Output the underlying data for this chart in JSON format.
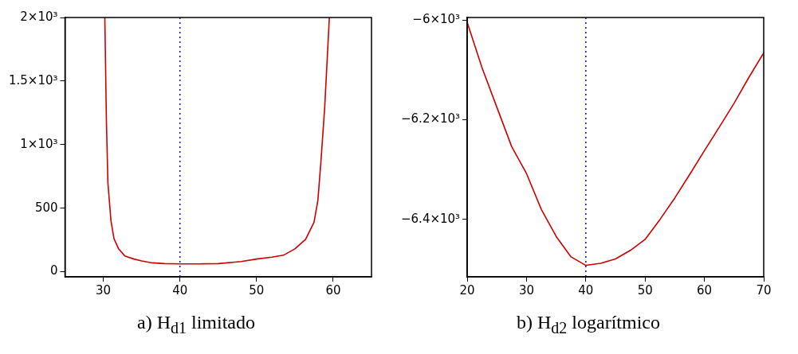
{
  "chart_data": [
    {
      "type": "line",
      "x": [
        30.2,
        30.4,
        30.6,
        31,
        31.4,
        32,
        32.8,
        34,
        35,
        36.4,
        38,
        40,
        42.5,
        45,
        48,
        50,
        52,
        53.5,
        55,
        56.4,
        57.5,
        58,
        58.4,
        58.9,
        59.2,
        59.5
      ],
      "series": [
        {
          "color": "#cc0000",
          "values": [
            2000,
            1200,
            700,
            400,
            260,
            180,
            125,
            100,
            85,
            70,
            64,
            62,
            62,
            64,
            80,
            100,
            115,
            130,
            180,
            255,
            390,
            560,
            865,
            1300,
            1650,
            2000
          ]
        }
      ],
      "xlim": [
        25,
        65
      ],
      "xticks": [
        30,
        40,
        50,
        60
      ],
      "ylim": [
        -40,
        2000
      ],
      "yticks": [
        0,
        500,
        {
          "value": 1000,
          "label": "1×10³"
        },
        {
          "value": 1500,
          "label": "1.5×10³"
        },
        {
          "value": 2000,
          "label": "2×10³"
        }
      ],
      "ref_lines": [
        {
          "axis": "x",
          "value": 40,
          "color": "#1a1aa0",
          "line_style": "dotted"
        }
      ],
      "annotations": [
        "a) H$_{d1}$ limitado"
      ],
      "grid": false,
      "legend": false,
      "line_style": "solid"
    },
    {
      "type": "line",
      "x": [
        20,
        22.5,
        25,
        27.5,
        30,
        32.5,
        35,
        37.5,
        40,
        42.5,
        45,
        47.5,
        50,
        52.5,
        55,
        57.5,
        60,
        62.5,
        65,
        67.5,
        70
      ],
      "series": [
        {
          "color": "#cc0000",
          "values": [
            -6005,
            -6096,
            -6175,
            -6254,
            -6308,
            -6380,
            -6434,
            -6475,
            -6492,
            -6488,
            -6479,
            -6462,
            -6440,
            -6400,
            -6357,
            -6310,
            -6262,
            -6215,
            -6167,
            -6115,
            -6066
          ]
        }
      ],
      "xlim": [
        20,
        70
      ],
      "xticks": [
        20,
        30,
        40,
        50,
        60,
        70
      ],
      "ylim": [
        -6515,
        -5995
      ],
      "yticks": [
        {
          "value": -6000,
          "label": "−6×10³"
        },
        {
          "value": -6200,
          "label": "−6.2×10³"
        },
        {
          "value": -6400,
          "label": "−6.4×10³"
        }
      ],
      "ref_lines": [
        {
          "axis": "x",
          "value": 40,
          "color": "#1a1aa0",
          "line_style": "dotted"
        }
      ],
      "annotations": [
        "b) H$_{d2}$ logarítmico"
      ],
      "grid": false,
      "legend": false,
      "line_style": "solid"
    }
  ]
}
